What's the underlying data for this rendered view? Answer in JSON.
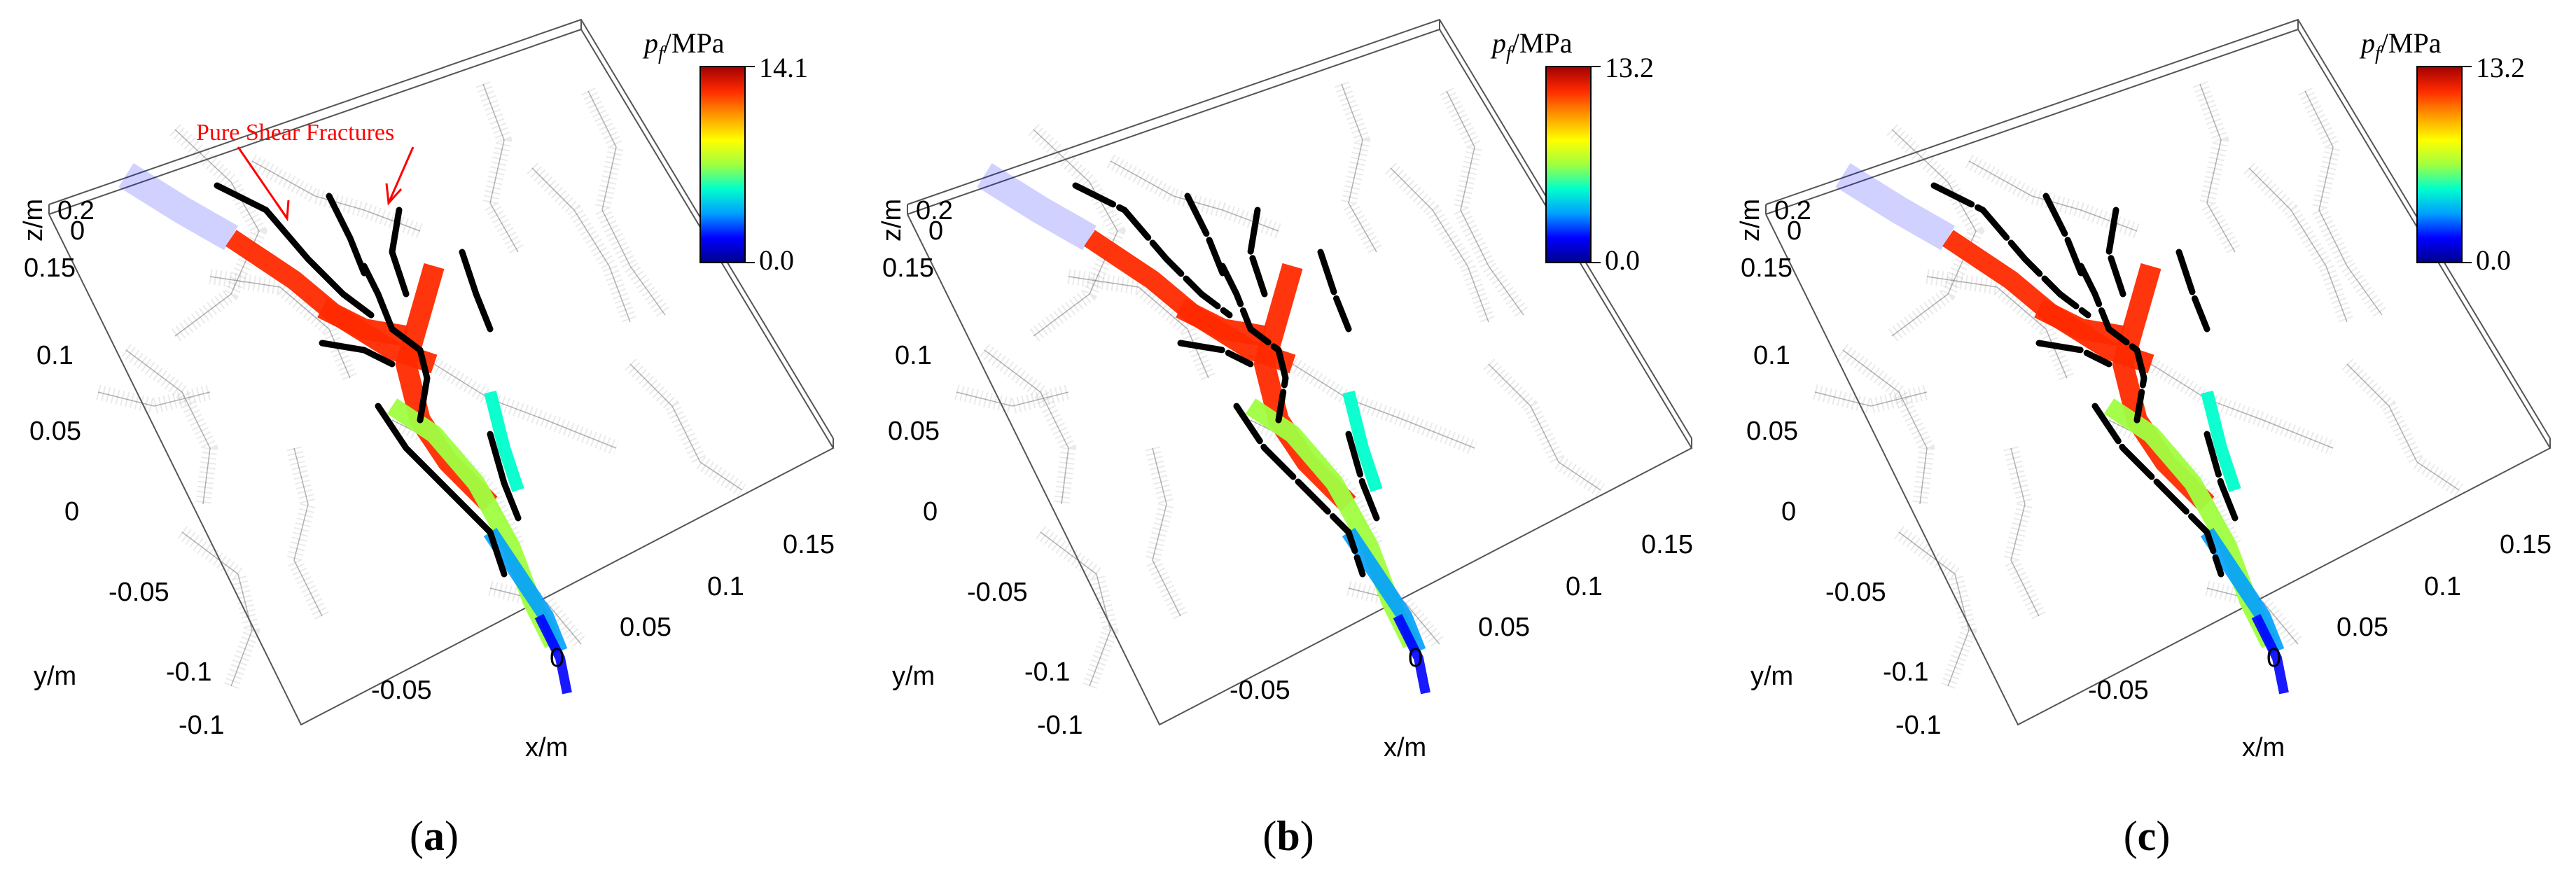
{
  "colors": {
    "colormap": [
      "#00008b",
      "#0000ff",
      "#00a0ff",
      "#00ffcc",
      "#a0ff40",
      "#ffff00",
      "#ff9900",
      "#ff2a00",
      "#a00000"
    ],
    "annotation": "#ff0000",
    "fracture_trace": "#000000",
    "inactive_fracture": "#888888"
  },
  "icons": {
    "arrow": "red-arrow-icon"
  },
  "colorbar": {
    "title_symbol": "p",
    "title_subscript": "f",
    "title_unit": "/MPa",
    "min_label": "0.0"
  },
  "axes": {
    "z_label": "z/m",
    "y_label": "y/m",
    "x_label": "x/m",
    "z_ticks": [
      "0.2",
      "0"
    ],
    "y_ticks": [
      "0.15",
      "0.1",
      "0.05",
      "0",
      "-0.05",
      "-0.1"
    ],
    "x_ticks": [
      "-0.1",
      "-0.05",
      "0",
      "0.05",
      "0.1",
      "0.15"
    ]
  },
  "panels": [
    {
      "label_open": "(",
      "label_letter": "a",
      "label_close": ")",
      "colorbar_max": "14.1",
      "annotation": "Pure Shear Fractures"
    },
    {
      "label_open": "(",
      "label_letter": "b",
      "label_close": ")",
      "colorbar_max": "13.2"
    },
    {
      "label_open": "(",
      "label_letter": "c",
      "label_close": ")",
      "colorbar_max": "13.2"
    }
  ]
}
